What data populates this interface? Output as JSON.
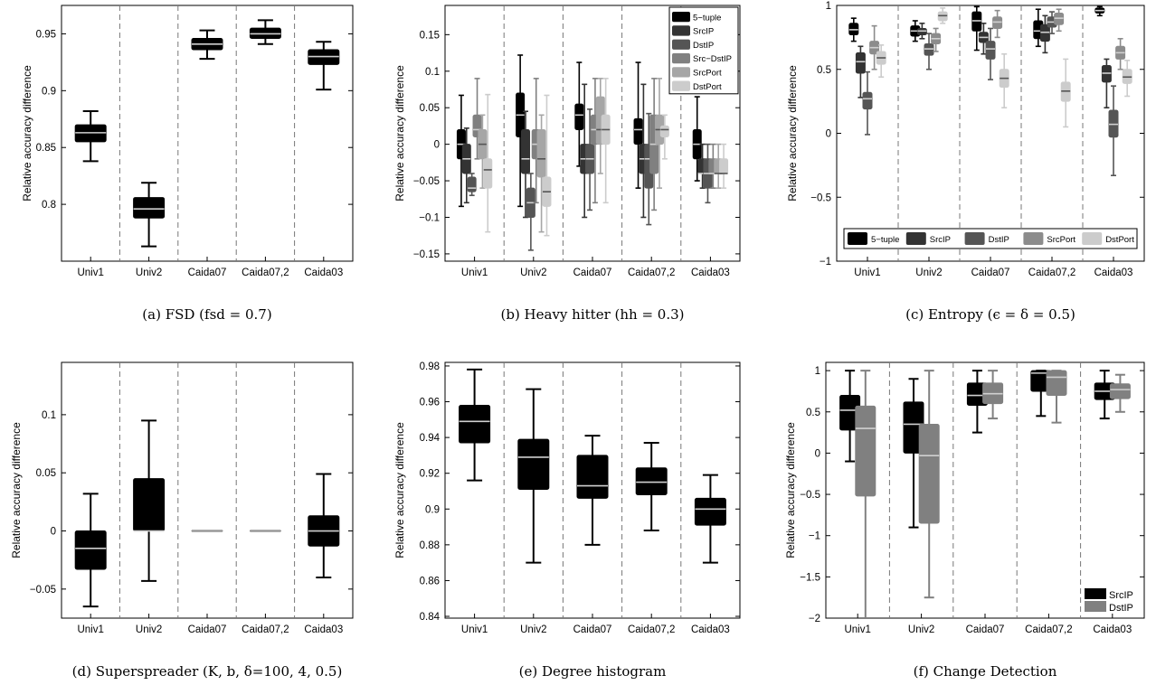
{
  "chart_data": [
    {
      "panel": "a",
      "type": "box",
      "caption": "(a) FSD (fsd = 0.7)",
      "ylabel": "Relative accuracy difference",
      "ylim": [
        0.75,
        0.975
      ],
      "yticks": [
        0.8,
        0.85,
        0.9,
        0.95
      ],
      "categories": [
        "Univ1",
        "Univ2",
        "Caida07",
        "Caida07,2",
        "Caida03"
      ],
      "legend": [],
      "series": [
        {
          "color": "#000000",
          "boxes": [
            {
              "min": 0.838,
              "q1": 0.855,
              "median": 0.863,
              "q3": 0.87,
              "max": 0.882
            },
            {
              "min": 0.763,
              "q1": 0.788,
              "median": 0.796,
              "q3": 0.806,
              "max": 0.819
            },
            {
              "min": 0.928,
              "q1": 0.936,
              "median": 0.941,
              "q3": 0.946,
              "max": 0.953
            },
            {
              "min": 0.941,
              "q1": 0.946,
              "median": 0.95,
              "q3": 0.955,
              "max": 0.962
            },
            {
              "min": 0.901,
              "q1": 0.923,
              "median": 0.93,
              "q3": 0.936,
              "max": 0.943
            }
          ]
        }
      ]
    },
    {
      "panel": "b",
      "type": "box",
      "caption": "(b) Heavy hitter (hh = 0.3)",
      "ylabel": "Relative accuracy difference",
      "ylim": [
        -0.16,
        0.19
      ],
      "yticks": [
        -0.15,
        -0.1,
        -0.05,
        0,
        0.05,
        0.1,
        0.15
      ],
      "categories": [
        "Univ1",
        "Univ2",
        "Caida07",
        "Caida07,2",
        "Caida03"
      ],
      "legend": [
        "5−tuple",
        "SrcIP",
        "DstIP",
        "Src−DstIP",
        "SrcPort",
        "DstPort"
      ],
      "legend_position": "top-right",
      "series": [
        {
          "name": "5−tuple",
          "color": "#000000",
          "boxes": [
            {
              "min": -0.085,
              "q1": -0.02,
              "median": 0.0,
              "q3": 0.02,
              "max": 0.067
            },
            {
              "min": -0.085,
              "q1": 0.01,
              "median": 0.04,
              "q3": 0.07,
              "max": 0.122
            },
            {
              "min": -0.03,
              "q1": 0.02,
              "median": 0.04,
              "q3": 0.055,
              "max": 0.112
            },
            {
              "min": -0.06,
              "q1": 0.0,
              "median": 0.02,
              "q3": 0.035,
              "max": 0.112
            },
            {
              "min": -0.05,
              "q1": -0.02,
              "median": 0.0,
              "q3": 0.02,
              "max": 0.065
            }
          ]
        },
        {
          "name": "SrcIP",
          "color": "#333333",
          "boxes": [
            {
              "min": -0.08,
              "q1": -0.04,
              "median": -0.02,
              "q3": 0.0,
              "max": 0.022
            },
            {
              "min": -0.1,
              "q1": -0.04,
              "median": -0.02,
              "q3": 0.02,
              "max": 0.045
            },
            {
              "min": -0.1,
              "q1": -0.04,
              "median": -0.02,
              "q3": 0.0,
              "max": 0.082
            },
            {
              "min": -0.1,
              "q1": -0.04,
              "median": -0.02,
              "q3": 0.0,
              "max": 0.082
            },
            {
              "min": -0.06,
              "q1": -0.04,
              "median": -0.04,
              "q3": -0.02,
              "max": 0.0
            }
          ]
        },
        {
          "name": "DstIP",
          "color": "#555555",
          "boxes": [
            {
              "min": -0.07,
              "q1": -0.065,
              "median": -0.06,
              "q3": -0.045,
              "max": -0.04
            },
            {
              "min": -0.145,
              "q1": -0.1,
              "median": -0.08,
              "q3": -0.06,
              "max": -0.04
            },
            {
              "min": -0.09,
              "q1": -0.04,
              "median": -0.02,
              "q3": 0.0,
              "max": 0.048
            },
            {
              "min": -0.11,
              "q1": -0.06,
              "median": -0.02,
              "q3": 0.0,
              "max": 0.042
            },
            {
              "min": -0.08,
              "q1": -0.06,
              "median": -0.04,
              "q3": -0.02,
              "max": 0.0
            }
          ]
        },
        {
          "name": "Src−DstIP",
          "color": "#808080",
          "boxes": [
            {
              "min": -0.02,
              "q1": 0.01,
              "median": 0.02,
              "q3": 0.04,
              "max": 0.09
            },
            {
              "min": -0.08,
              "q1": -0.02,
              "median": 0.0,
              "q3": 0.02,
              "max": 0.09
            },
            {
              "min": -0.08,
              "q1": 0.0,
              "median": 0.02,
              "q3": 0.04,
              "max": 0.09
            },
            {
              "min": -0.09,
              "q1": -0.04,
              "median": 0.0,
              "q3": 0.04,
              "max": 0.09
            },
            {
              "min": -0.06,
              "q1": -0.04,
              "median": -0.04,
              "q3": -0.02,
              "max": 0.0
            }
          ]
        },
        {
          "name": "SrcPort",
          "color": "#a6a6a6",
          "boxes": [
            {
              "min": -0.06,
              "q1": -0.02,
              "median": 0.0,
              "q3": 0.02,
              "max": 0.04
            },
            {
              "min": -0.12,
              "q1": -0.045,
              "median": -0.02,
              "q3": 0.02,
              "max": 0.04
            },
            {
              "min": -0.04,
              "q1": 0.0,
              "median": 0.02,
              "q3": 0.065,
              "max": 0.09
            },
            {
              "min": -0.06,
              "q1": 0.0,
              "median": 0.02,
              "q3": 0.04,
              "max": 0.09
            },
            {
              "min": -0.06,
              "q1": -0.04,
              "median": -0.04,
              "q3": -0.02,
              "max": 0.0
            }
          ]
        },
        {
          "name": "DstPort",
          "color": "#cccccc",
          "boxes": [
            {
              "min": -0.12,
              "q1": -0.06,
              "median": -0.035,
              "q3": -0.02,
              "max": 0.068
            },
            {
              "min": -0.125,
              "q1": -0.085,
              "median": -0.065,
              "q3": -0.045,
              "max": 0.067
            },
            {
              "min": -0.08,
              "q1": 0.0,
              "median": 0.02,
              "q3": 0.04,
              "max": 0.09
            },
            {
              "min": -0.02,
              "q1": 0.01,
              "median": 0.02,
              "q3": 0.025,
              "max": 0.04
            },
            {
              "min": -0.06,
              "q1": -0.04,
              "median": -0.04,
              "q3": -0.02,
              "max": 0.0
            }
          ]
        }
      ]
    },
    {
      "panel": "c",
      "type": "box",
      "caption": "(c) Entropy (ϵ = δ = 0.5)",
      "ylabel": "Relative accuracy difference",
      "ylim": [
        -1,
        1
      ],
      "yticks": [
        -1,
        -0.5,
        0,
        0.5,
        1
      ],
      "categories": [
        "Univ1",
        "Univ2",
        "Caida07",
        "Caida07,2",
        "Caida03"
      ],
      "legend": [
        "5−tuple",
        "SrcIP",
        "DstIP",
        "SrcPort",
        "DstPort"
      ],
      "legend_position": "bottom",
      "series": [
        {
          "name": "5−tuple",
          "color": "#000000",
          "boxes": [
            {
              "min": 0.72,
              "q1": 0.77,
              "median": 0.81,
              "q3": 0.86,
              "max": 0.9
            },
            {
              "min": 0.72,
              "q1": 0.76,
              "median": 0.8,
              "q3": 0.84,
              "max": 0.88
            },
            {
              "min": 0.65,
              "q1": 0.8,
              "median": 0.88,
              "q3": 0.95,
              "max": 0.99
            },
            {
              "min": 0.68,
              "q1": 0.74,
              "median": 0.8,
              "q3": 0.88,
              "max": 0.97
            },
            {
              "min": 0.92,
              "q1": 0.94,
              "median": 0.96,
              "q3": 0.98,
              "max": 0.99
            }
          ]
        },
        {
          "name": "SrcIP",
          "color": "#333333",
          "boxes": [
            {
              "min": 0.28,
              "q1": 0.47,
              "median": 0.56,
              "q3": 0.63,
              "max": 0.68
            },
            {
              "min": 0.74,
              "q1": 0.77,
              "median": 0.8,
              "q3": 0.82,
              "max": 0.86
            },
            {
              "min": 0.62,
              "q1": 0.71,
              "median": 0.75,
              "q3": 0.79,
              "max": 0.86
            },
            {
              "min": 0.63,
              "q1": 0.72,
              "median": 0.79,
              "q3": 0.85,
              "max": 0.92
            },
            {
              "min": 0.2,
              "q1": 0.4,
              "median": 0.47,
              "q3": 0.53,
              "max": 0.58
            }
          ]
        },
        {
          "name": "DstIP",
          "color": "#555555",
          "boxes": [
            {
              "min": -0.01,
              "q1": 0.19,
              "median": 0.27,
              "q3": 0.32,
              "max": 0.48
            },
            {
              "min": 0.5,
              "q1": 0.61,
              "median": 0.66,
              "q3": 0.7,
              "max": 0.78
            },
            {
              "min": 0.42,
              "q1": 0.58,
              "median": 0.66,
              "q3": 0.72,
              "max": 0.82
            },
            {
              "min": 0.78,
              "q1": 0.83,
              "median": 0.87,
              "q3": 0.91,
              "max": 0.95
            },
            {
              "min": -0.33,
              "q1": -0.03,
              "median": 0.07,
              "q3": 0.18,
              "max": 0.37
            }
          ]
        },
        {
          "name": "SrcPort",
          "color": "#8c8c8c",
          "boxes": [
            {
              "min": 0.5,
              "q1": 0.62,
              "median": 0.67,
              "q3": 0.72,
              "max": 0.84
            },
            {
              "min": 0.64,
              "q1": 0.7,
              "median": 0.74,
              "q3": 0.78,
              "max": 0.82
            },
            {
              "min": 0.75,
              "q1": 0.82,
              "median": 0.87,
              "q3": 0.91,
              "max": 0.96
            },
            {
              "min": 0.8,
              "q1": 0.85,
              "median": 0.9,
              "q3": 0.94,
              "max": 0.97
            },
            {
              "min": 0.5,
              "q1": 0.58,
              "median": 0.63,
              "q3": 0.68,
              "max": 0.74
            }
          ]
        },
        {
          "name": "DstPort",
          "color": "#cccccc",
          "boxes": [
            {
              "min": 0.44,
              "q1": 0.54,
              "median": 0.59,
              "q3": 0.64,
              "max": 0.69
            },
            {
              "min": 0.86,
              "q1": 0.88,
              "median": 0.92,
              "q3": 0.95,
              "max": 0.98
            },
            {
              "min": 0.2,
              "q1": 0.36,
              "median": 0.43,
              "q3": 0.5,
              "max": 0.62
            },
            {
              "min": 0.05,
              "q1": 0.25,
              "median": 0.33,
              "q3": 0.4,
              "max": 0.58
            },
            {
              "min": 0.29,
              "q1": 0.39,
              "median": 0.44,
              "q3": 0.5,
              "max": 0.57
            }
          ]
        }
      ]
    },
    {
      "panel": "d",
      "type": "box",
      "caption": "(d) Superspreader (K, b, δ=100, 4, 0.5)",
      "ylabel": "Relative accuracy difference",
      "ylim": [
        -0.075,
        0.145
      ],
      "yticks": [
        -0.05,
        0,
        0.05,
        0.1
      ],
      "categories": [
        "Univ1",
        "Univ2",
        "Caida07",
        "Caida07,2",
        "Caida03"
      ],
      "legend": [],
      "series": [
        {
          "color": "#000000",
          "boxes": [
            {
              "min": -0.065,
              "q1": -0.033,
              "median": -0.015,
              "q3": 0.0,
              "max": 0.032
            },
            {
              "min": -0.043,
              "q1": 0.0,
              "median": 0.0,
              "q3": 0.045,
              "max": 0.095
            },
            {
              "min": 0.0,
              "q1": 0.0,
              "median": 0.0,
              "q3": 0.0,
              "max": 0.0
            },
            {
              "min": 0.0,
              "q1": 0.0,
              "median": 0.0,
              "q3": 0.0,
              "max": 0.0
            },
            {
              "min": -0.04,
              "q1": -0.013,
              "median": 0.0,
              "q3": 0.013,
              "max": 0.049
            }
          ]
        }
      ]
    },
    {
      "panel": "e",
      "type": "box",
      "caption": "(e) Degree histogram",
      "ylabel": "Relative accuracy difference",
      "ylim": [
        0.839,
        0.982
      ],
      "yticks": [
        0.84,
        0.86,
        0.88,
        0.9,
        0.92,
        0.94,
        0.96,
        0.98
      ],
      "categories": [
        "Univ1",
        "Univ2",
        "Caida07",
        "Caida07,2",
        "Caida03"
      ],
      "legend": [],
      "series": [
        {
          "color": "#000000",
          "boxes": [
            {
              "min": 0.916,
              "q1": 0.937,
              "median": 0.949,
              "q3": 0.958,
              "max": 0.978
            },
            {
              "min": 0.87,
              "q1": 0.911,
              "median": 0.929,
              "q3": 0.939,
              "max": 0.967
            },
            {
              "min": 0.88,
              "q1": 0.906,
              "median": 0.913,
              "q3": 0.93,
              "max": 0.941
            },
            {
              "min": 0.888,
              "q1": 0.908,
              "median": 0.915,
              "q3": 0.923,
              "max": 0.937
            },
            {
              "min": 0.87,
              "q1": 0.891,
              "median": 0.9,
              "q3": 0.906,
              "max": 0.919
            }
          ]
        }
      ]
    },
    {
      "panel": "f",
      "type": "box",
      "caption": "(f) Change Detection",
      "ylabel": "Relative accuracy difference",
      "ylim": [
        -2,
        1.1
      ],
      "yticks": [
        -2,
        -1.5,
        -1,
        -0.5,
        0,
        0.5,
        1
      ],
      "categories": [
        "Univ1",
        "Univ2",
        "Caida07",
        "Caida07,2",
        "Caida03"
      ],
      "legend": [
        "SrcIP",
        "DstIP"
      ],
      "legend_position": "bottom-right",
      "series": [
        {
          "name": "SrcIP",
          "color": "#000000",
          "boxes": [
            {
              "min": -0.1,
              "q1": 0.28,
              "median": 0.52,
              "q3": 0.7,
              "max": 1.0
            },
            {
              "min": -0.9,
              "q1": 0.0,
              "median": 0.35,
              "q3": 0.62,
              "max": 0.9
            },
            {
              "min": 0.25,
              "q1": 0.58,
              "median": 0.7,
              "q3": 0.85,
              "max": 1.0
            },
            {
              "min": 0.45,
              "q1": 0.75,
              "median": 0.97,
              "q3": 1.0,
              "max": 1.0
            },
            {
              "min": 0.42,
              "q1": 0.65,
              "median": 0.75,
              "q3": 0.85,
              "max": 1.0
            }
          ]
        },
        {
          "name": "DstIP",
          "color": "#808080",
          "boxes": [
            {
              "min": -2.0,
              "q1": -0.52,
              "median": 0.3,
              "q3": 0.57,
              "max": 1.0
            },
            {
              "min": -1.75,
              "q1": -0.85,
              "median": -0.03,
              "q3": 0.35,
              "max": 1.0
            },
            {
              "min": 0.42,
              "q1": 0.6,
              "median": 0.72,
              "q3": 0.85,
              "max": 1.0
            },
            {
              "min": 0.37,
              "q1": 0.7,
              "median": 0.92,
              "q3": 1.0,
              "max": 1.0
            },
            {
              "min": 0.5,
              "q1": 0.66,
              "median": 0.77,
              "q3": 0.84,
              "max": 0.95
            }
          ]
        }
      ]
    }
  ]
}
